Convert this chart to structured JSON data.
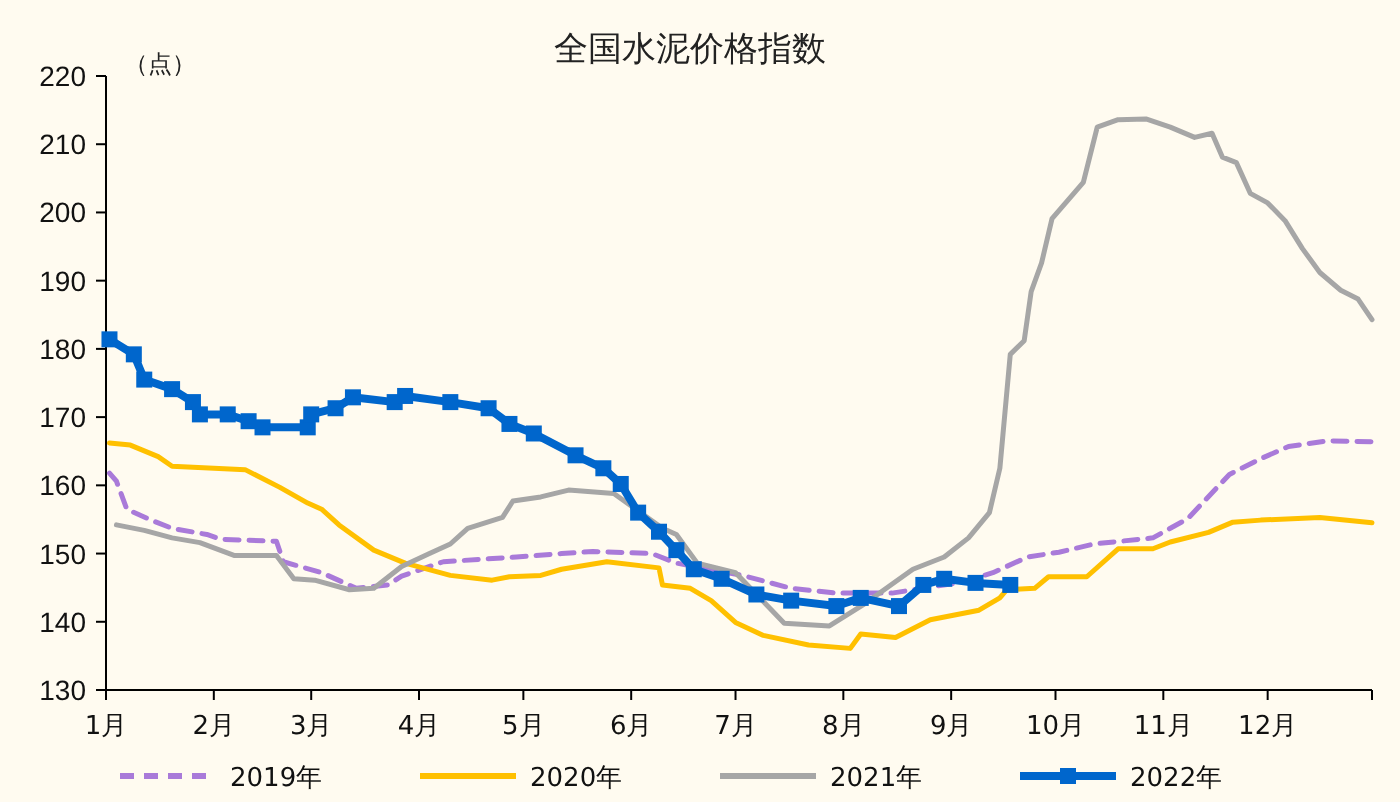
{
  "chart_data": {
    "type": "line",
    "title": "全国水泥价格指数",
    "ylabel": "（点）",
    "xlim": [
      "--01-01",
      "--12-31"
    ],
    "ylim": [
      130,
      220
    ],
    "xticks": [
      {
        "value": "--01-01",
        "label": "1月"
      },
      {
        "value": "--02-01",
        "label": "2月"
      },
      {
        "value": "--03-01",
        "label": "3月"
      },
      {
        "value": "--04-01",
        "label": "4月"
      },
      {
        "value": "--05-01",
        "label": "5月"
      },
      {
        "value": "--06-01",
        "label": "6月"
      },
      {
        "value": "--07-01",
        "label": "7月"
      },
      {
        "value": "--08-01",
        "label": "8月"
      },
      {
        "value": "--09-01",
        "label": "9月"
      },
      {
        "value": "--10-01",
        "label": "10月"
      },
      {
        "value": "--11-01",
        "label": "11月"
      },
      {
        "value": "--12-01",
        "label": "12月"
      },
      {
        "value": "--12-31",
        "label": null
      }
    ],
    "yticks": [
      130,
      140,
      150,
      160,
      170,
      180,
      190,
      200,
      210,
      220
    ],
    "legend": "bottom",
    "series": [
      {
        "name": "2019年",
        "color": "#a97ad9",
        "line_style": "dashed",
        "marker": "none",
        "x": [
          "--01-02",
          "--01-04",
          "--01-07",
          "--01-14",
          "--01-20",
          "--01-30",
          "--02-03",
          "--02-19",
          "--02-21",
          "--03-04",
          "--03-14",
          "--03-23",
          "--03-27",
          "--04-08",
          "--04-29",
          "--05-12",
          "--05-21",
          "--06-07",
          "--06-14",
          "--07-03",
          "--07-17",
          "--07-30",
          "--08-15",
          "--09-04",
          "--09-13",
          "--09-23",
          "--10-02",
          "--10-12",
          "--10-29",
          "--11-08",
          "--11-20",
          "--11-29",
          "--12-07",
          "--12-18",
          "--12-31"
        ],
        "values": [
          161.8,
          160.6,
          156.5,
          154.9,
          153.7,
          152.8,
          152.1,
          151.8,
          148.8,
          147.2,
          144.9,
          145.4,
          146.7,
          148.8,
          149.5,
          150,
          150.3,
          150,
          148.6,
          146.8,
          144.9,
          144.2,
          144.2,
          145.8,
          147.2,
          149.5,
          150.2,
          151.4,
          152.3,
          155.1,
          161.6,
          163.9,
          165.7,
          166.5,
          166.4
        ]
      },
      {
        "name": "2020年",
        "color": "#ffc000",
        "line_style": "solid",
        "marker": "none",
        "x": [
          "--01-02",
          "--01-08",
          "--01-16",
          "--01-20",
          "--02-10",
          "--02-20",
          "--02-28",
          "--03-04",
          "--03-09",
          "--03-19",
          "--03-28",
          "--04-10",
          "--04-22",
          "--04-27",
          "--05-06",
          "--05-12",
          "--05-25",
          "--06-09",
          "--06-10",
          "--06-18",
          "--06-24",
          "--07-01",
          "--07-09",
          "--07-22",
          "--08-03",
          "--08-06",
          "--08-16",
          "--08-26",
          "--09-09",
          "--09-15",
          "--09-17",
          "--09-25",
          "--09-29",
          "--10-10",
          "--10-19",
          "--10-29",
          "--11-03",
          "--11-14",
          "--11-21",
          "--11-29",
          "--12-16",
          "--12-31"
        ],
        "values": [
          166.2,
          165.9,
          164.2,
          162.8,
          162.3,
          159.7,
          157.4,
          156.5,
          154.2,
          150.5,
          148.6,
          146.8,
          146.1,
          146.6,
          146.8,
          147.7,
          148.8,
          147.9,
          145.4,
          144.9,
          143.1,
          139.9,
          138,
          136.6,
          136.1,
          138.2,
          137.7,
          140.3,
          141.7,
          143.5,
          144.7,
          144.9,
          146.6,
          146.6,
          150.7,
          150.7,
          151.7,
          153.1,
          154.6,
          154.9,
          155.3,
          154.5
        ]
      },
      {
        "name": "2021年",
        "color": "#a6a6a6",
        "line_style": "solid",
        "marker": "none",
        "x": [
          "--01-04",
          "--01-12",
          "--01-20",
          "--01-28",
          "--02-07",
          "--02-19",
          "--02-24",
          "--03-02",
          "--03-12",
          "--03-19",
          "--03-27",
          "--04-04",
          "--04-10",
          "--04-15",
          "--04-25",
          "--04-28",
          "--05-06",
          "--05-14",
          "--05-27",
          "--06-10",
          "--06-14",
          "--06-20",
          "--07-01",
          "--07-15",
          "--07-28",
          "--08-07",
          "--08-21",
          "--08-30",
          "--09-06",
          "--09-12",
          "--09-15",
          "--09-18",
          "--09-22",
          "--09-24",
          "--09-27",
          "--09-30",
          "--10-09",
          "--10-13",
          "--10-19",
          "--10-27",
          "--11-03",
          "--11-10",
          "--11-15",
          "--11-18",
          "--11-22",
          "--11-26",
          "--12-01",
          "--12-06",
          "--12-11",
          "--12-16",
          "--12-22",
          "--12-27",
          "--12-31"
        ],
        "values": [
          154.2,
          153.4,
          152.3,
          151.6,
          149.7,
          149.7,
          146.3,
          146.1,
          144.7,
          144.9,
          148.1,
          150,
          151.4,
          153.7,
          155.3,
          157.7,
          158.3,
          159.3,
          158.8,
          153.7,
          152.8,
          148.6,
          147.2,
          139.8,
          139.4,
          142.6,
          147.7,
          149.5,
          152.3,
          156,
          162.5,
          179.2,
          181.2,
          188.4,
          192.6,
          199.1,
          204.4,
          212.5,
          213.6,
          213.7,
          212.5,
          211,
          211.6,
          208.1,
          207.3,
          202.8,
          201.4,
          198.8,
          194.7,
          191.2,
          188.6,
          187.3,
          184.3
        ]
      },
      {
        "name": "2022年",
        "color": "#0066cc",
        "line_style": "solid",
        "marker": "square",
        "x": [
          "--01-02",
          "--01-09",
          "--01-12",
          "--01-20",
          "--01-26",
          "--01-28",
          "--02-05",
          "--02-11",
          "--02-15",
          "--02-28",
          "--03-01",
          "--03-08",
          "--03-13",
          "--03-25",
          "--03-28",
          "--04-10",
          "--04-21",
          "--04-27",
          "--05-04",
          "--05-16",
          "--05-24",
          "--05-29",
          "--06-03",
          "--06-09",
          "--06-14",
          "--06-19",
          "--06-27",
          "--07-07",
          "--07-17",
          "--07-30",
          "--08-06",
          "--08-17",
          "--08-24",
          "--08-30",
          "--09-08",
          "--09-18"
        ],
        "values": [
          181.4,
          179.2,
          175.5,
          174.1,
          172.2,
          170.4,
          170.4,
          169.4,
          168.5,
          168.5,
          170.4,
          171.3,
          172.9,
          172.2,
          173.1,
          172.2,
          171.3,
          169,
          167.6,
          164.4,
          162.5,
          160.2,
          156,
          153.2,
          150.5,
          147.7,
          146.3,
          144,
          143.1,
          142.3,
          143.5,
          142.3,
          145.4,
          146.3,
          145.7,
          145.4
        ]
      }
    ]
  }
}
